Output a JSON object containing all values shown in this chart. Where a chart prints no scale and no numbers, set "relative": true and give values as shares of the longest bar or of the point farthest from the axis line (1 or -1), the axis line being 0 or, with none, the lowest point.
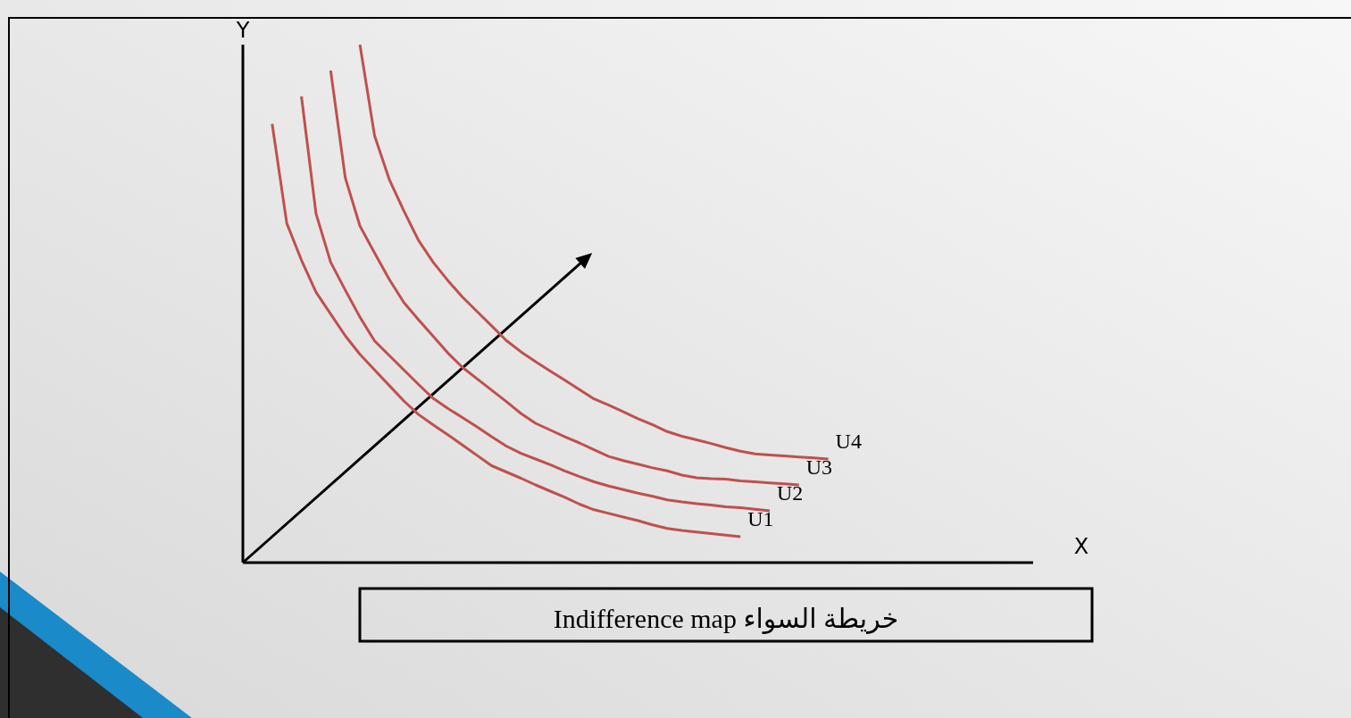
{
  "chart_data": {
    "type": "line",
    "relative": true,
    "xlabel": "X",
    "ylabel": "Y",
    "categories": [
      null,
      null,
      null,
      null,
      null,
      null,
      null,
      null,
      null,
      null,
      null,
      null,
      null,
      null,
      null,
      null,
      null,
      null,
      null,
      null,
      null,
      null,
      null,
      null,
      null,
      null,
      null,
      null,
      null,
      null,
      null,
      null,
      null,
      null,
      null,
      null,
      null,
      null,
      null,
      null,
      null,
      null,
      null,
      null,
      null,
      null,
      null,
      null,
      null,
      null,
      null,
      null,
      null,
      null,
      null
    ],
    "annotations": [
      "Indifference map  خريطة السواء"
    ],
    "series": [
      {
        "name": "U1",
        "color": "#c0504d",
        "values": [
          null,
          null,
          0.847,
          0.655,
          0.584,
          0.522,
          0.48,
          0.438,
          0.402,
          0.372,
          0.342,
          0.312,
          0.286,
          0.266,
          0.247,
          0.227,
          0.207,
          0.187,
          0.175,
          0.163,
          0.15,
          0.138,
          0.126,
          0.113,
          0.102,
          0.095,
          0.088,
          0.081,
          0.073,
          0.066,
          0.062,
          0.059,
          0.056,
          0.053,
          0.05,
          null,
          null,
          null,
          null,
          null,
          null,
          null,
          null,
          null,
          null,
          null,
          null,
          null,
          null,
          null,
          null,
          null,
          null,
          null,
          null
        ]
      },
      {
        "name": "U2",
        "color": "#c0504d",
        "values": [
          null,
          null,
          null,
          null,
          0.9,
          0.674,
          0.58,
          0.526,
          0.474,
          0.428,
          0.4,
          0.372,
          0.344,
          0.317,
          0.298,
          0.28,
          0.262,
          0.243,
          0.225,
          0.211,
          0.2,
          0.189,
          0.177,
          0.166,
          0.156,
          0.148,
          0.141,
          0.134,
          0.128,
          0.121,
          0.117,
          0.114,
          0.111,
          0.108,
          0.106,
          0.103,
          0.1,
          null,
          null,
          null,
          null,
          null,
          null,
          null,
          null,
          null,
          null,
          null,
          null,
          null,
          null,
          null,
          null,
          null,
          null
        ]
      },
      {
        "name": "U3",
        "color": "#c0504d",
        "values": [
          null,
          null,
          null,
          null,
          null,
          null,
          0.95,
          0.743,
          0.65,
          0.598,
          0.547,
          0.502,
          0.469,
          0.437,
          0.405,
          0.377,
          0.355,
          0.333,
          0.311,
          0.288,
          0.269,
          0.256,
          0.243,
          0.231,
          0.218,
          0.205,
          0.197,
          0.19,
          0.183,
          0.177,
          0.169,
          0.164,
          0.162,
          0.161,
          0.158,
          0.156,
          0.154,
          0.152,
          0.15,
          null,
          null,
          null,
          null,
          null,
          null,
          null,
          null,
          null,
          null,
          null,
          null,
          null,
          null,
          null,
          null
        ]
      },
      {
        "name": "U4",
        "color": "#c0504d",
        "values": [
          null,
          null,
          null,
          null,
          null,
          null,
          null,
          null,
          1.0,
          0.824,
          0.74,
          0.679,
          0.622,
          0.58,
          0.545,
          0.513,
          0.485,
          0.457,
          0.429,
          0.407,
          0.388,
          0.37,
          0.352,
          0.334,
          0.316,
          0.304,
          0.291,
          0.278,
          0.266,
          0.253,
          0.244,
          0.237,
          0.23,
          0.222,
          0.215,
          0.21,
          0.208,
          0.206,
          0.204,
          0.202,
          0.2,
          null,
          null,
          null,
          null,
          null,
          null,
          null,
          null,
          null,
          null,
          null,
          null,
          null,
          null
        ]
      }
    ]
  }
}
